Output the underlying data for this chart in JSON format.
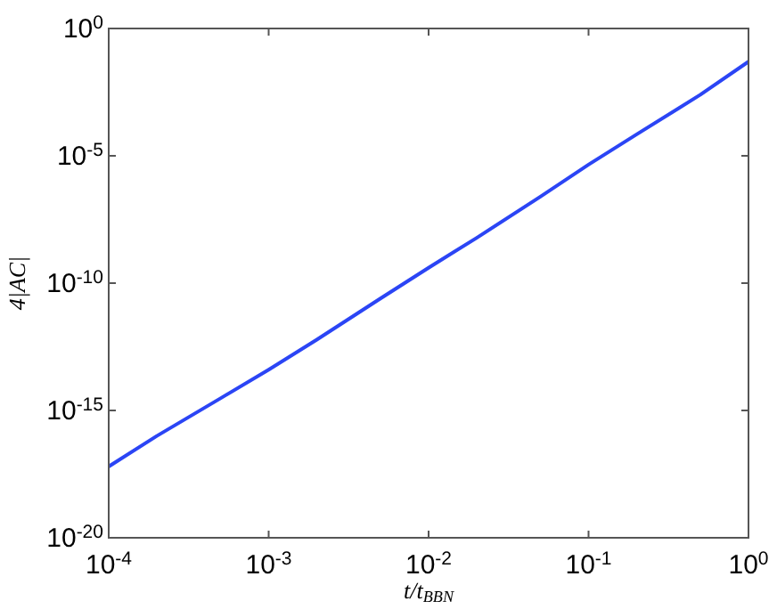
{
  "chart_data": {
    "type": "line",
    "xlabel": "t/t$_{BBN}$",
    "ylabel": "4|AC|",
    "log": "xy",
    "x": [
      0.0001,
      0.0002,
      0.0005,
      0.001,
      0.002,
      0.005,
      0.01,
      0.02,
      0.05,
      0.1,
      0.2,
      0.5,
      1
    ],
    "series": [
      {
        "color": "#2b45f5",
        "values": [
          6.3e-18,
          1e-16,
          3e-15,
          4e-14,
          6e-13,
          2.5e-11,
          4e-10,
          6e-09,
          2.5e-07,
          4.5e-06,
          7e-05,
          0.0025,
          0.05
        ]
      }
    ],
    "xlim": [
      0.0001,
      1
    ],
    "ylim": [
      1e-20,
      1
    ],
    "xticks": [
      {
        "value": 0.0001,
        "label": "10$^{-4}$"
      },
      {
        "value": 0.001,
        "label": "10$^{-3}$"
      },
      {
        "value": 0.01,
        "label": "10$^{-2}$"
      },
      {
        "value": 0.1,
        "label": "10$^{-1}$"
      },
      {
        "value": 1,
        "label": "10$^{0}$"
      }
    ],
    "yticks": [
      {
        "value": 1e-20,
        "label": "10$^{-20}$"
      },
      {
        "value": 1e-15,
        "label": "10$^{-15}$"
      },
      {
        "value": 1e-10,
        "label": "10$^{-10}$"
      },
      {
        "value": 1e-05,
        "label": "10$^{-5}$"
      },
      {
        "value": 1,
        "label": "10$^{0}$"
      }
    ],
    "grid": false,
    "marker": "none",
    "line_style": "solid"
  }
}
